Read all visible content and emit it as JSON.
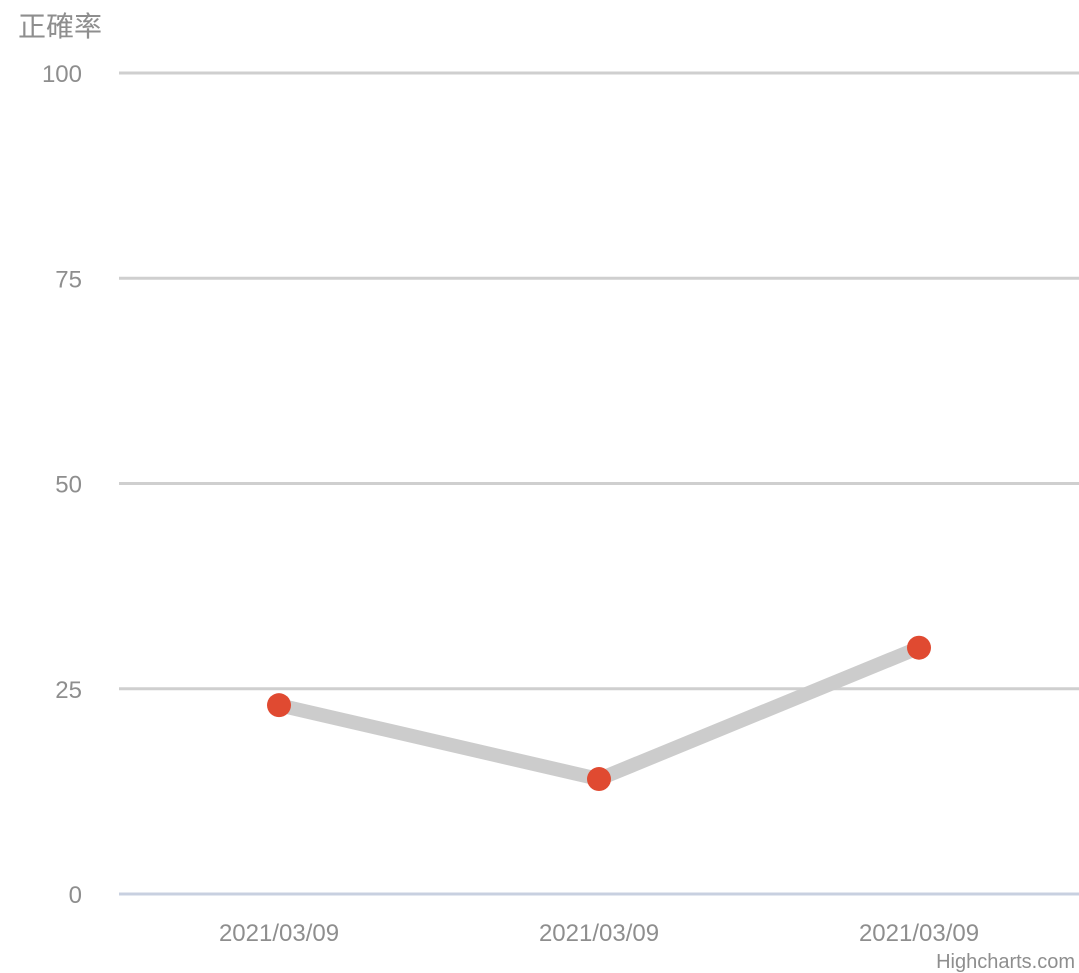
{
  "chart_data": {
    "type": "line",
    "title": "",
    "ylabel": "正確率",
    "xlabel": "",
    "ylim": [
      0,
      100
    ],
    "y_ticks": [
      0,
      25,
      50,
      75,
      100
    ],
    "categories": [
      "2021/03/09",
      "2021/03/09",
      "2021/03/09"
    ],
    "series": [
      {
        "values": [
          23,
          14,
          30
        ]
      }
    ],
    "grid": true,
    "legend": "none"
  },
  "colors": {
    "line": "#cccccc",
    "marker": "#e04a31",
    "grid": "#cfcfcf",
    "axis": "#c8d0e0",
    "text": "#8e8e8e"
  },
  "credits": "Highcharts.com"
}
